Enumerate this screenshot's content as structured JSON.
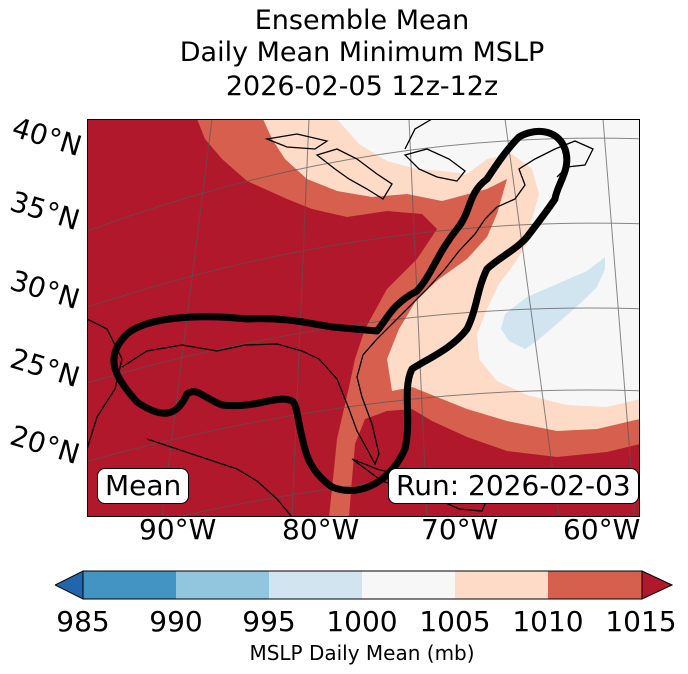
{
  "title": {
    "line1": "Ensemble Mean",
    "line2": "Daily Mean Minimum MSLP",
    "line3": "2026-02-05 12z-12z"
  },
  "map": {
    "lat_labels": [
      "40°N",
      "35°N",
      "30°N",
      "25°N",
      "20°N"
    ],
    "lon_labels": [
      "90°W",
      "80°W",
      "70°W",
      "60°W"
    ],
    "mean_label": "Mean",
    "run_label": "Run: 2026-02-03"
  },
  "colorbar": {
    "label": "MSLP Daily Mean (mb)",
    "ticks": [
      "985",
      "990",
      "995",
      "1000",
      "1005",
      "1010",
      "1015"
    ],
    "colors": [
      "#2166ac",
      "#4393c3",
      "#92c5de",
      "#d1e5f0",
      "#f7f7f7",
      "#fddbc7",
      "#d6604d",
      "#b2182b"
    ]
  }
}
